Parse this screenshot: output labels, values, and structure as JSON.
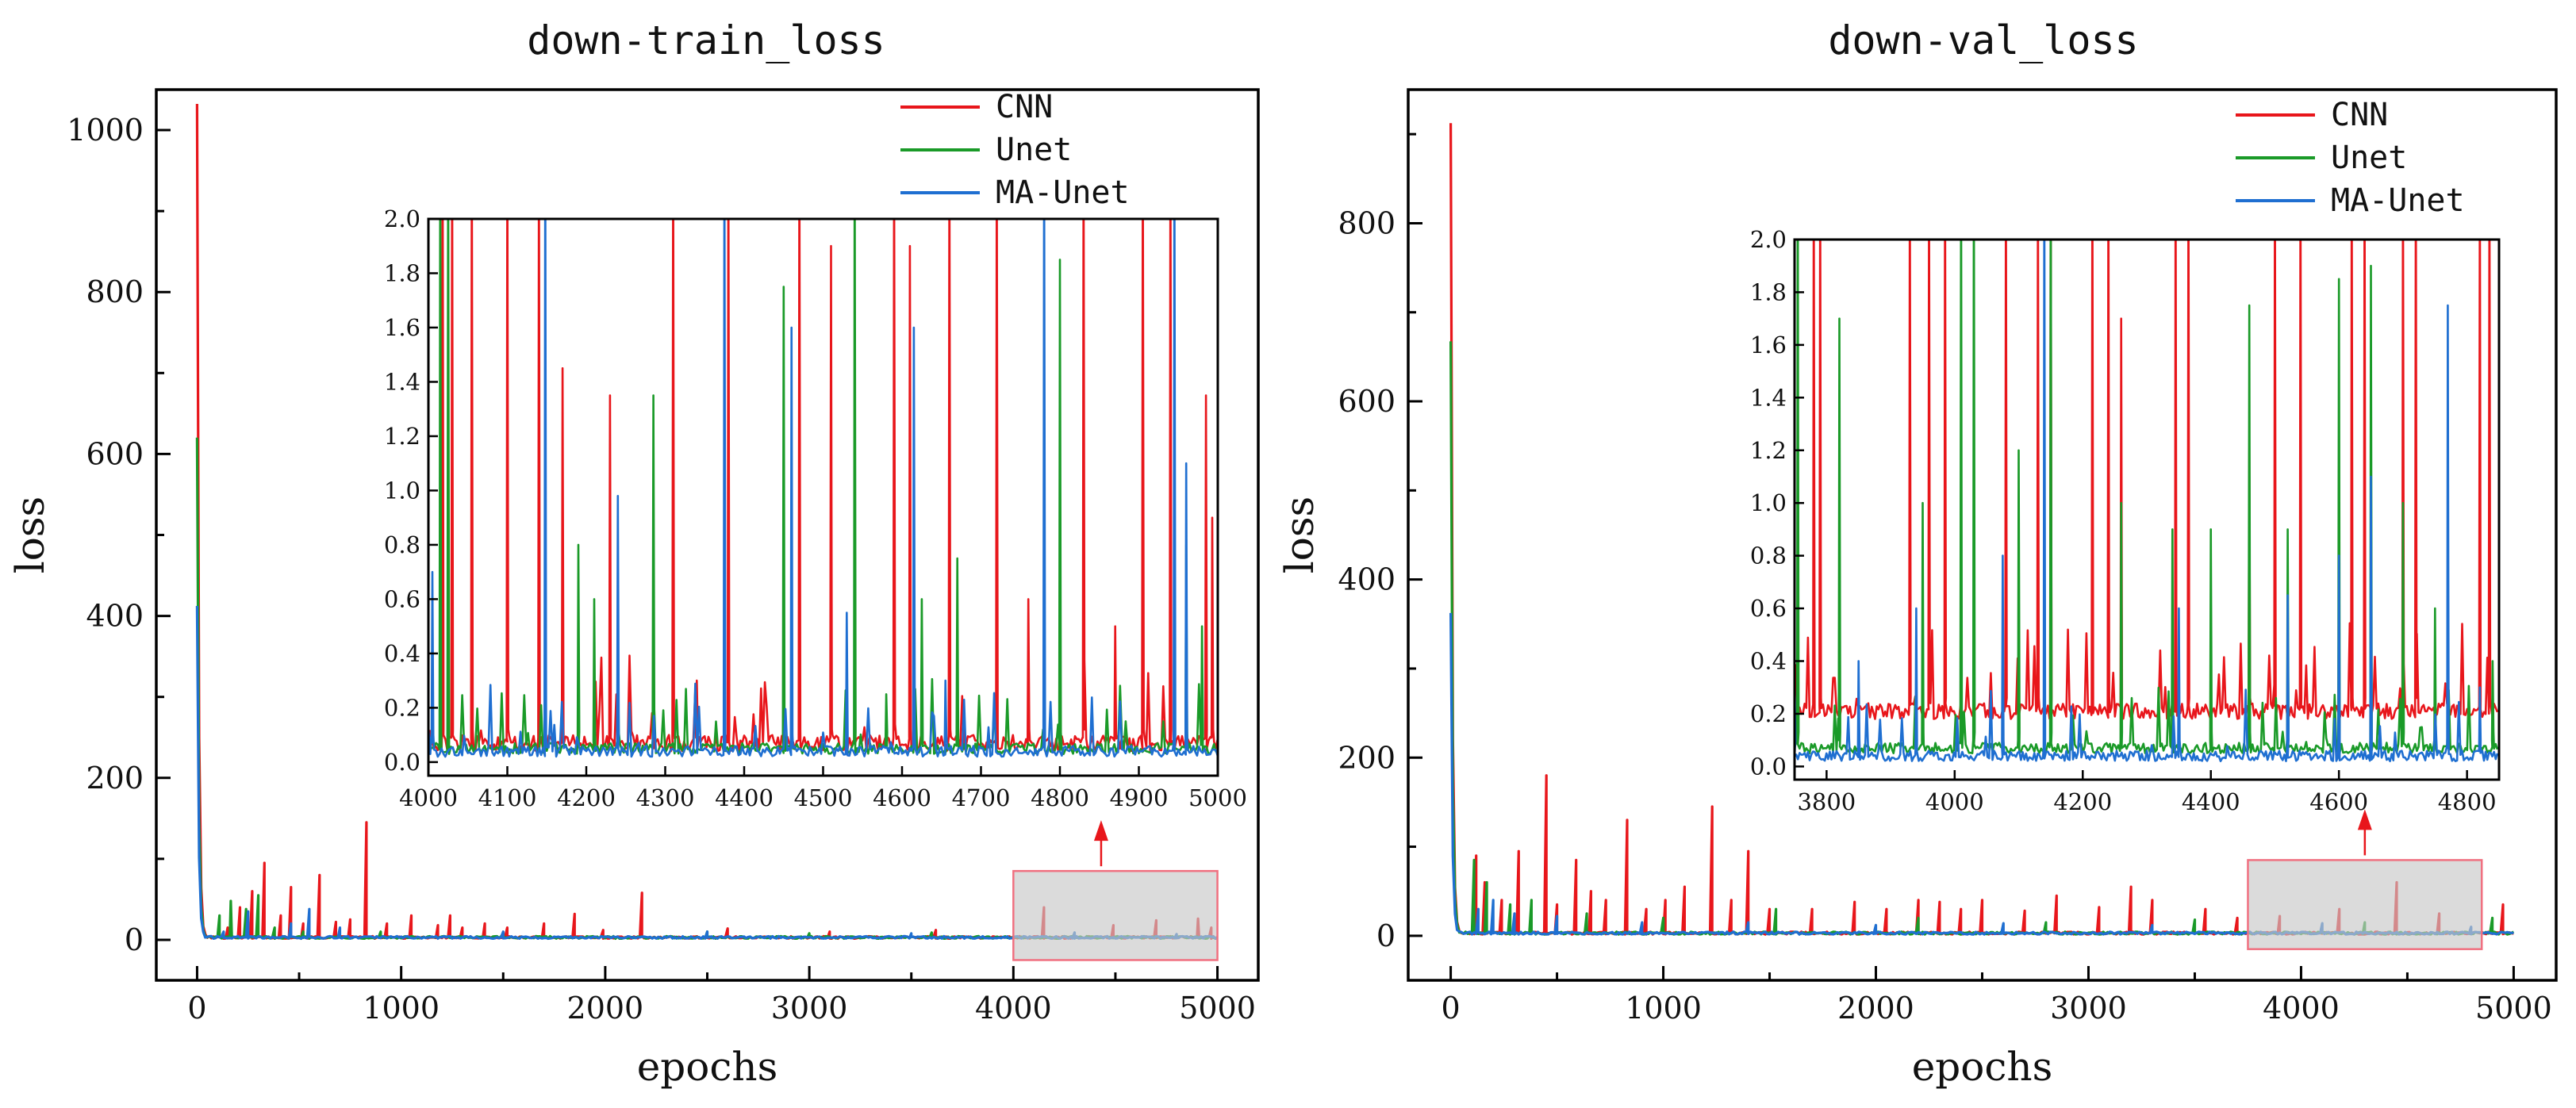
{
  "chart_data": [
    {
      "type": "line",
      "title": "down-train_loss",
      "xlabel": "epochs",
      "ylabel": "loss",
      "xlim": [
        -200,
        5200
      ],
      "ylim": [
        -50,
        1050
      ],
      "xticks": [
        0,
        1000,
        2000,
        3000,
        4000,
        5000
      ],
      "yticks": [
        0,
        200,
        400,
        600,
        800,
        1000
      ],
      "legend_position": "top-right",
      "series": [
        {
          "name": "CNN",
          "color": "#e8161b",
          "initial_peak": 1030,
          "spikes": [
            [
              150,
              15
            ],
            [
              210,
              40
            ],
            [
              270,
              60
            ],
            [
              330,
              95
            ],
            [
              410,
              30
            ],
            [
              460,
              65
            ],
            [
              520,
              20
            ],
            [
              600,
              80
            ],
            [
              680,
              22
            ],
            [
              750,
              25
            ],
            [
              830,
              145
            ],
            [
              930,
              20
            ],
            [
              1050,
              30
            ],
            [
              1180,
              18
            ],
            [
              1240,
              30
            ],
            [
              1300,
              15
            ],
            [
              1410,
              20
            ],
            [
              1520,
              15
            ],
            [
              1700,
              20
            ],
            [
              1850,
              32
            ],
            [
              1990,
              12
            ],
            [
              2180,
              58
            ],
            [
              2600,
              14
            ],
            [
              3100,
              10
            ],
            [
              3620,
              12
            ],
            [
              4150,
              40
            ],
            [
              4490,
              18
            ],
            [
              4700,
              24
            ],
            [
              4905,
              26
            ],
            [
              4970,
              15
            ]
          ]
        },
        {
          "name": "Unet",
          "color": "#1a9a28",
          "initial_peak": 618,
          "spikes": [
            [
              110,
              30
            ],
            [
              165,
              48
            ],
            [
              240,
              38
            ],
            [
              300,
              55
            ],
            [
              380,
              15
            ],
            [
              520,
              10
            ],
            [
              900,
              10
            ],
            [
              1500,
              8
            ],
            [
              2500,
              10
            ],
            [
              3000,
              8
            ],
            [
              3600,
              9
            ],
            [
              4300,
              7
            ]
          ]
        },
        {
          "name": "MA-Unet",
          "color": "#1f6fd1",
          "initial_peak": 410,
          "spikes": [
            [
              130,
              10
            ],
            [
              250,
              35
            ],
            [
              460,
              20
            ],
            [
              550,
              38
            ],
            [
              700,
              15
            ],
            [
              1500,
              10
            ],
            [
              2500,
              10
            ],
            [
              3500,
              8
            ],
            [
              4300,
              9
            ],
            [
              4800,
              7
            ]
          ]
        }
      ],
      "inset": {
        "xlim": [
          4000,
          5000
        ],
        "ylim": [
          -0.05,
          2.0
        ],
        "xticks": [
          4000,
          4100,
          4200,
          4300,
          4400,
          4500,
          4600,
          4700,
          4800,
          4900,
          5000
        ],
        "xtick_labels": [
          "4000",
          "4100",
          "4200",
          "4300",
          "4400",
          "4500",
          "4600",
          "4700",
          "4800",
          "4900",
          "5000"
        ],
        "yticks": [
          0.0,
          0.2,
          0.4,
          0.6,
          0.8,
          1.0,
          1.2,
          1.4,
          1.6,
          1.8,
          2.0
        ],
        "ytick_labels": [
          "0.0",
          "0.2",
          "0.4",
          "0.6",
          "0.8",
          "1.0",
          "1.2",
          "1.4",
          "1.6",
          "1.8",
          "2.0"
        ],
        "baselines": {
          "CNN": 0.04,
          "Unet": 0.03,
          "MA-Unet": 0.02
        },
        "spikes": {
          "CNN": [
            [
              4018,
              2.0
            ],
            [
              4030,
              2.0
            ],
            [
              4055,
              2.0
            ],
            [
              4100,
              2.0
            ],
            [
              4140,
              2.0
            ],
            [
              4170,
              1.45
            ],
            [
              4230,
              1.35
            ],
            [
              4310,
              2.0
            ],
            [
              4340,
              0.3
            ],
            [
              4380,
              2.0
            ],
            [
              4470,
              2.0
            ],
            [
              4510,
              1.9
            ],
            [
              4590,
              2.0
            ],
            [
              4610,
              1.9
            ],
            [
              4660,
              2.0
            ],
            [
              4720,
              2.0
            ],
            [
              4760,
              0.6
            ],
            [
              4830,
              2.0
            ],
            [
              4870,
              0.5
            ],
            [
              4905,
              2.0
            ],
            [
              4940,
              2.0
            ],
            [
              4985,
              1.35
            ],
            [
              4993,
              0.9
            ]
          ],
          "Unet": [
            [
              4015,
              2.0
            ],
            [
              4025,
              2.0
            ],
            [
              4190,
              0.8
            ],
            [
              4210,
              0.6
            ],
            [
              4240,
              0.4
            ],
            [
              4285,
              1.35
            ],
            [
              4450,
              1.75
            ],
            [
              4540,
              2.0
            ],
            [
              4580,
              0.25
            ],
            [
              4625,
              0.6
            ],
            [
              4670,
              0.75
            ],
            [
              4800,
              1.85
            ],
            [
              4960,
              0.8
            ],
            [
              4980,
              0.5
            ]
          ],
          "MA-Unet": [
            [
              4005,
              0.7
            ],
            [
              4148,
              2.0
            ],
            [
              4240,
              0.98
            ],
            [
              4375,
              2.0
            ],
            [
              4460,
              1.6
            ],
            [
              4530,
              0.55
            ],
            [
              4615,
              1.6
            ],
            [
              4655,
              0.3
            ],
            [
              4780,
              2.0
            ],
            [
              4945,
              2.0
            ],
            [
              4960,
              1.1
            ]
          ]
        }
      },
      "zoom_region": {
        "x": [
          4000,
          5000
        ],
        "y": [
          -25,
          85
        ]
      }
    },
    {
      "type": "line",
      "title": "down-val_loss",
      "xlabel": "epochs",
      "ylabel": "loss",
      "xlim": [
        -200,
        5200
      ],
      "ylim": [
        -50,
        950
      ],
      "xticks": [
        0,
        1000,
        2000,
        3000,
        4000,
        5000
      ],
      "yticks": [
        0,
        200,
        400,
        600,
        800
      ],
      "legend_position": "top-right",
      "series": [
        {
          "name": "CNN",
          "color": "#e8161b",
          "initial_peak": 910,
          "spikes": [
            [
              120,
              90
            ],
            [
              160,
              60
            ],
            [
              240,
              40
            ],
            [
              320,
              95
            ],
            [
              450,
              180
            ],
            [
              500,
              35
            ],
            [
              590,
              85
            ],
            [
              660,
              50
            ],
            [
              730,
              40
            ],
            [
              830,
              130
            ],
            [
              920,
              30
            ],
            [
              1010,
              40
            ],
            [
              1100,
              55
            ],
            [
              1230,
              145
            ],
            [
              1320,
              40
            ],
            [
              1400,
              95
            ],
            [
              1500,
              30
            ],
            [
              1700,
              30
            ],
            [
              1900,
              38
            ],
            [
              2050,
              30
            ],
            [
              2200,
              40
            ],
            [
              2300,
              38
            ],
            [
              2400,
              30
            ],
            [
              2500,
              40
            ],
            [
              2700,
              28
            ],
            [
              2850,
              45
            ],
            [
              3050,
              32
            ],
            [
              3200,
              55
            ],
            [
              3300,
              40
            ],
            [
              3550,
              30
            ],
            [
              3700,
              20
            ],
            [
              3900,
              22
            ],
            [
              4180,
              30
            ],
            [
              4450,
              60
            ],
            [
              4650,
              25
            ],
            [
              4950,
              35
            ]
          ]
        },
        {
          "name": "Unet",
          "color": "#1a9a28",
          "initial_peak": 665,
          "spikes": [
            [
              110,
              85
            ],
            [
              170,
              60
            ],
            [
              280,
              35
            ],
            [
              380,
              40
            ],
            [
              640,
              25
            ],
            [
              1000,
              20
            ],
            [
              1530,
              30
            ],
            [
              2200,
              20
            ],
            [
              2800,
              15
            ],
            [
              3500,
              18
            ],
            [
              4300,
              15
            ],
            [
              4900,
              20
            ]
          ]
        },
        {
          "name": "MA-Unet",
          "color": "#1f6fd1",
          "initial_peak": 360,
          "spikes": [
            [
              130,
              30
            ],
            [
              200,
              40
            ],
            [
              300,
              25
            ],
            [
              500,
              22
            ],
            [
              900,
              15
            ],
            [
              1400,
              15
            ],
            [
              2000,
              12
            ],
            [
              2600,
              14
            ],
            [
              3300,
              12
            ],
            [
              4100,
              14
            ],
            [
              4800,
              10
            ]
          ]
        }
      ],
      "inset": {
        "xlim": [
          3750,
          4850
        ],
        "ylim": [
          -0.05,
          2.0
        ],
        "xticks": [
          3800,
          4000,
          4200,
          4400,
          4600,
          4800
        ],
        "xtick_labels": [
          "3800",
          "4000",
          "4200",
          "4400",
          "4600",
          "4800"
        ],
        "yticks": [
          0.0,
          0.2,
          0.4,
          0.6,
          0.8,
          1.0,
          1.2,
          1.4,
          1.6,
          1.8,
          2.0
        ],
        "ytick_labels": [
          "0.0",
          "0.2",
          "0.4",
          "0.6",
          "0.8",
          "1.0",
          "1.2",
          "1.4",
          "1.6",
          "1.8",
          "2.0"
        ],
        "baselines": {
          "CNN": 0.18,
          "Unet": 0.05,
          "MA-Unet": 0.02
        },
        "spikes": {
          "CNN": [
            [
              3780,
              2.0
            ],
            [
              3790,
              2.0
            ],
            [
              3930,
              2.0
            ],
            [
              3960,
              2.0
            ],
            [
              3985,
              2.0
            ],
            [
              4080,
              2.0
            ],
            [
              4130,
              2.0
            ],
            [
              4150,
              2.0
            ],
            [
              4215,
              2.0
            ],
            [
              4240,
              2.0
            ],
            [
              4260,
              1.7
            ],
            [
              4345,
              2.0
            ],
            [
              4365,
              2.0
            ],
            [
              4460,
              1.2
            ],
            [
              4500,
              2.0
            ],
            [
              4540,
              2.0
            ],
            [
              4620,
              2.0
            ],
            [
              4640,
              2.0
            ],
            [
              4700,
              2.0
            ],
            [
              4720,
              2.0
            ],
            [
              4820,
              2.0
            ],
            [
              4835,
              2.0
            ]
          ],
          "Unet": [
            [
              3755,
              2.0
            ],
            [
              3820,
              1.7
            ],
            [
              3950,
              1.0
            ],
            [
              4010,
              2.0
            ],
            [
              4030,
              2.0
            ],
            [
              4100,
              1.2
            ],
            [
              4150,
              2.0
            ],
            [
              4260,
              1.0
            ],
            [
              4340,
              0.9
            ],
            [
              4400,
              0.9
            ],
            [
              4460,
              1.75
            ],
            [
              4520,
              0.9
            ],
            [
              4600,
              1.85
            ],
            [
              4650,
              1.9
            ],
            [
              4700,
              1.0
            ],
            [
              4750,
              0.6
            ],
            [
              4840,
              0.4
            ]
          ],
          "MA-Unet": [
            [
              3750,
              0.35
            ],
            [
              3850,
              0.4
            ],
            [
              3940,
              0.6
            ],
            [
              4075,
              0.8
            ],
            [
              4140,
              2.0
            ],
            [
              4350,
              0.6
            ],
            [
              4520,
              0.65
            ],
            [
              4600,
              0.8
            ],
            [
              4650,
              1.1
            ],
            [
              4770,
              1.75
            ],
            [
              4820,
              0.3
            ]
          ]
        }
      },
      "zoom_region": {
        "x": [
          3750,
          4850
        ],
        "y": [
          -15,
          85
        ]
      }
    }
  ]
}
